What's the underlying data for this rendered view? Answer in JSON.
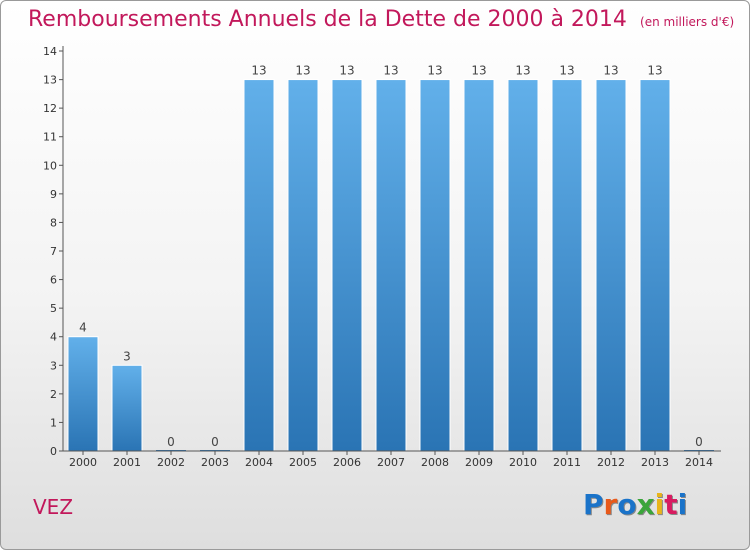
{
  "title": "Remboursements Annuels de la Dette de 2000 à 2014",
  "unit_note": "(en milliers d'€)",
  "commune": "VEZ",
  "logo": {
    "text": "Proxiti",
    "letter_colors": [
      "#1a73c9",
      "#e8591a",
      "#1a73c9",
      "#3aa53a",
      "#e8b41a",
      "#d81b60",
      "#1a73c9"
    ]
  },
  "colors": {
    "title": "#c2185b",
    "bar_top": "#62b0ea",
    "bar_bottom": "#2a74b4",
    "axis": "#555555"
  },
  "chart_data": {
    "type": "bar",
    "categories": [
      "2000",
      "2001",
      "2002",
      "2003",
      "2004",
      "2005",
      "2006",
      "2007",
      "2008",
      "2009",
      "2010",
      "2011",
      "2012",
      "2013",
      "2014"
    ],
    "values": [
      4,
      3,
      0,
      0,
      13,
      13,
      13,
      13,
      13,
      13,
      13,
      13,
      13,
      13,
      0
    ],
    "data_labels": [
      "4",
      "3",
      "0",
      "0",
      "13",
      "13",
      "13",
      "13",
      "13",
      "13",
      "13",
      "13",
      "13",
      "13",
      "0"
    ],
    "yticks": [
      "0",
      "1",
      "2",
      "3",
      "4",
      "5",
      "6",
      "7",
      "8",
      "9",
      "10",
      "11",
      "12",
      "13",
      "14"
    ],
    "ylim": [
      0,
      14
    ],
    "grid": false,
    "legend": "none"
  }
}
